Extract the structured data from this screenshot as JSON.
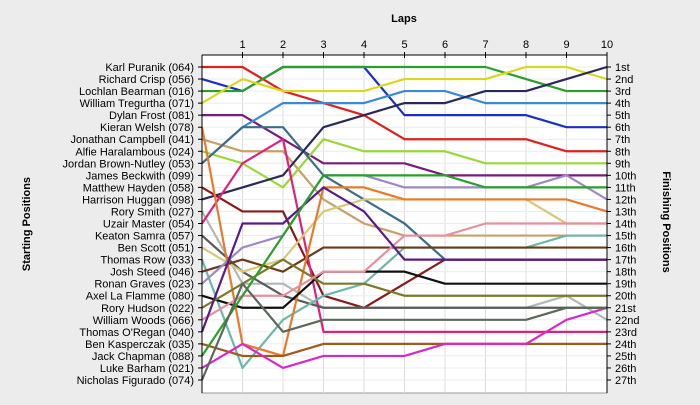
{
  "chart_data": {
    "type": "line",
    "title": "Laps",
    "left_axis_label": "Starting Positions",
    "right_axis_label": "Finishing Positions",
    "laps": [
      "0",
      "1",
      "2",
      "3",
      "4",
      "5",
      "6",
      "7",
      "8",
      "9",
      "10"
    ],
    "lap_tick_labels": [
      "1",
      "2",
      "3",
      "4",
      "5",
      "6",
      "7",
      "8",
      "9",
      "10"
    ],
    "finishing_labels": [
      "1st",
      "2nd",
      "3rd",
      "4th",
      "5th",
      "6th",
      "7th",
      "8th",
      "9th",
      "10th",
      "11th",
      "12th",
      "13th",
      "14th",
      "15th",
      "16th",
      "17th",
      "18th",
      "19th",
      "20th",
      "21st",
      "22nd",
      "23rd",
      "24th",
      "25th",
      "26th",
      "27th"
    ],
    "ylim": [
      1,
      27
    ],
    "grid": true,
    "series": [
      {
        "name": "Karl Puranik (064)",
        "color": "#e0201a",
        "positions": [
          1,
          1,
          3,
          4,
          5,
          7,
          7,
          7,
          7,
          8,
          8
        ]
      },
      {
        "name": "Richard Crisp (056)",
        "color": "#1a2fc8",
        "positions": [
          2,
          3,
          1,
          1,
          1,
          5,
          5,
          5,
          5,
          6,
          6
        ]
      },
      {
        "name": "Lochlan Bearman (016)",
        "color": "#27a12a",
        "positions": [
          3,
          3,
          1,
          1,
          1,
          1,
          1,
          1,
          2,
          3,
          3
        ]
      },
      {
        "name": "William Tregurtha (071)",
        "color": "#d8d820",
        "positions": [
          4,
          2,
          3,
          3,
          3,
          2,
          2,
          2,
          1,
          1,
          2
        ]
      },
      {
        "name": "Dylan Frost (081)",
        "color": "#7a1a7a",
        "positions": [
          5,
          5,
          7,
          9,
          9,
          9,
          10,
          10,
          10,
          10,
          10
        ]
      },
      {
        "name": "Kieran Welsh (078)",
        "color": "#3a8ad8",
        "positions": [
          9,
          6,
          4,
          4,
          4,
          3,
          3,
          4,
          4,
          4,
          4
        ]
      },
      {
        "name": "Jonathan Campbell (041)",
        "color": "#c8a068",
        "positions": [
          7,
          8,
          8,
          12,
          14,
          15,
          15,
          15,
          15,
          15,
          15
        ]
      },
      {
        "name": "Alfie Haralambous (024)",
        "color": "#9ad83a",
        "positions": [
          8,
          9,
          11,
          7,
          8,
          8,
          8,
          9,
          9,
          9,
          9
        ]
      },
      {
        "name": "Jordan Brown-Nutley (053)",
        "color": "#3a6e8a",
        "positions": [
          9,
          6,
          6,
          10,
          12,
          14,
          17,
          17,
          17,
          17,
          17
        ]
      },
      {
        "name": "James Beckwith (099)",
        "color": "#2a2a5a",
        "positions": [
          12,
          11,
          10,
          6,
          5,
          4,
          4,
          3,
          3,
          2,
          1
        ]
      },
      {
        "name": "Matthew Hayden (058)",
        "color": "#8a1a1a",
        "positions": [
          11,
          13,
          13,
          20,
          21,
          19,
          17,
          17,
          17,
          17,
          17
        ]
      },
      {
        "name": "Harrison Huggan (098)",
        "color": "#b0b8b8",
        "positions": [
          13,
          19,
          19,
          21,
          21,
          21,
          21,
          21,
          21,
          20,
          22
        ]
      },
      {
        "name": "Rory Smith (027)",
        "color": "#e0207a",
        "positions": [
          14,
          9,
          7,
          23,
          23,
          23,
          23,
          23,
          23,
          23,
          23
        ]
      },
      {
        "name": "Uzair Master (054)",
        "color": "#5a5a5a",
        "positions": [
          15,
          18,
          20,
          21,
          21,
          21,
          21,
          21,
          21,
          21,
          21
        ]
      },
      {
        "name": "Keaton Samra (057)",
        "color": "#d8c878",
        "positions": [
          16,
          18,
          17,
          13,
          12,
          12,
          12,
          12,
          12,
          14,
          14
        ]
      },
      {
        "name": "Ben Scott (051)",
        "color": "#6ab8a8",
        "positions": [
          17,
          26,
          22,
          20,
          19,
          16,
          16,
          16,
          16,
          15,
          15
        ]
      },
      {
        "name": "Thomas Row (033)",
        "color": "#6a3a1a",
        "positions": [
          18,
          17,
          18,
          16,
          16,
          16,
          16,
          16,
          16,
          16,
          16
        ]
      },
      {
        "name": "Josh Steed (046)",
        "color": "#e87a2a",
        "positions": [
          6,
          24,
          25,
          11,
          11,
          12,
          12,
          12,
          12,
          12,
          13
        ]
      },
      {
        "name": "Ronan Graves (023)",
        "color": "#a088c8",
        "positions": [
          19,
          16,
          15,
          10,
          10,
          11,
          11,
          11,
          11,
          10,
          12
        ]
      },
      {
        "name": "Axel La Flamme (080)",
        "color": "#101010",
        "positions": [
          20,
          21,
          21,
          18,
          18,
          18,
          19,
          19,
          19,
          19,
          19
        ]
      },
      {
        "name": "Rory Hudson (022)",
        "color": "#7a7a2a",
        "positions": [
          21,
          19,
          17,
          19,
          19,
          20,
          20,
          20,
          20,
          20,
          20
        ]
      },
      {
        "name": "William Woods (066)",
        "color": "#e890a0",
        "positions": [
          22,
          20,
          20,
          18,
          18,
          15,
          15,
          14,
          14,
          14,
          14
        ]
      },
      {
        "name": "Thomas O'Regan (040)",
        "color": "#5a1a8a",
        "positions": [
          23,
          14,
          14,
          11,
          13,
          17,
          17,
          17,
          17,
          17,
          17
        ]
      },
      {
        "name": "Ben Kasperczak (035)",
        "color": "#a05a1a",
        "positions": [
          24,
          25,
          25,
          24,
          24,
          24,
          24,
          24,
          24,
          24,
          24
        ]
      },
      {
        "name": "Jack Chapman (088)",
        "color": "#2aa02a",
        "positions": [
          25,
          20,
          15,
          10,
          10,
          10,
          10,
          11,
          11,
          11,
          11
        ]
      },
      {
        "name": "Luke Barham (021)",
        "color": "#d828c8",
        "positions": [
          26,
          24,
          26,
          25,
          25,
          25,
          24,
          24,
          24,
          22,
          21
        ]
      },
      {
        "name": "Nicholas Figurado (074)",
        "color": "#5a6a5a",
        "positions": [
          27,
          19,
          23,
          22,
          22,
          22,
          22,
          22,
          22,
          21,
          21
        ]
      }
    ]
  }
}
